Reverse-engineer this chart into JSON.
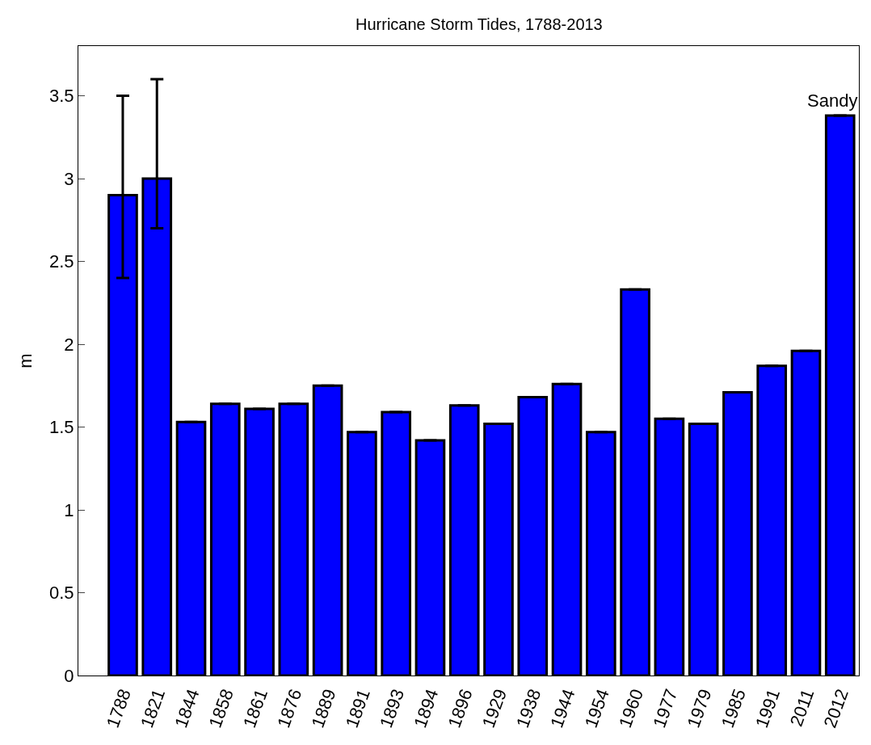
{
  "chart_data": {
    "type": "bar",
    "title": "Hurricane Storm Tides, 1788-2013",
    "ylabel": "m",
    "categories": [
      "1788",
      "1821",
      "1844",
      "1858",
      "1861",
      "1876",
      "1889",
      "1891",
      "1893",
      "1894",
      "1896",
      "1929",
      "1938",
      "1944",
      "1954",
      "1960",
      "1977",
      "1979",
      "1985",
      "1991",
      "2011",
      "2012"
    ],
    "values": [
      2.9,
      3.0,
      1.53,
      1.64,
      1.61,
      1.64,
      1.75,
      1.47,
      1.59,
      1.42,
      1.63,
      1.52,
      1.68,
      1.76,
      1.47,
      2.33,
      1.55,
      1.52,
      1.71,
      1.87,
      1.96,
      3.38
    ],
    "errors": [
      [
        2.4,
        3.5
      ],
      [
        2.7,
        3.6
      ],
      null,
      null,
      null,
      null,
      null,
      null,
      null,
      null,
      null,
      null,
      null,
      null,
      null,
      null,
      null,
      null,
      null,
      null,
      null,
      null
    ],
    "color": "#0000ff",
    "ylim": [
      0,
      3.8
    ],
    "yticks": [
      0,
      0.5,
      1,
      1.5,
      2,
      2.5,
      3,
      3.5
    ],
    "annotations": [
      {
        "text": "Sandy",
        "x": "2012",
        "y": 3.38
      }
    ],
    "grid": false
  }
}
